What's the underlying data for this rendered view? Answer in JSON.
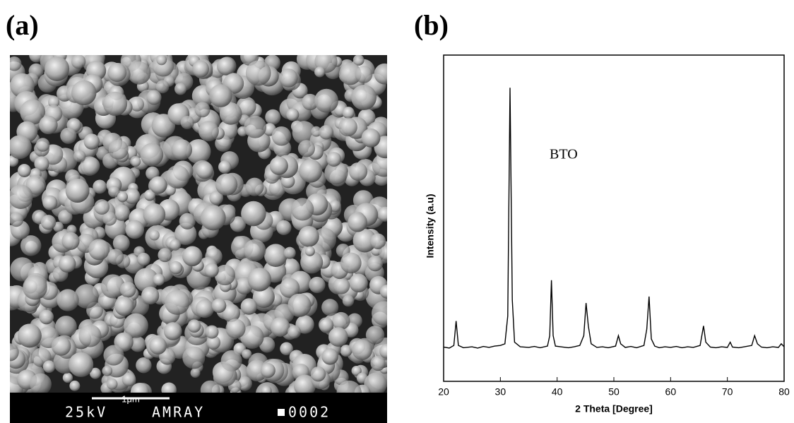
{
  "panel_a": {
    "label": "(a)",
    "scale_bar": "1μm",
    "voltage": "25kV",
    "instrument": "AMRAY",
    "frame": "0002"
  },
  "chart_data": {
    "type": "line",
    "label": "(b)",
    "x_label": "2 Theta [Degree]",
    "y_label": "Intensity  (a.u)",
    "annotation": "BTO",
    "color": "#000000",
    "x": [
      20,
      21,
      21.8,
      22.2,
      22.6,
      23.5,
      25,
      26,
      27,
      28,
      29,
      30,
      30.8,
      31.3,
      31.7,
      32.1,
      32.5,
      33.5,
      35,
      36,
      37,
      38.3,
      38.7,
      39,
      39.3,
      39.7,
      41,
      42,
      43,
      44,
      44.7,
      45.1,
      45.5,
      46,
      47,
      48,
      49,
      50.3,
      50.8,
      51.2,
      52,
      53,
      54,
      55.3,
      55.8,
      56.2,
      56.6,
      57.2,
      58,
      59,
      60,
      61,
      62,
      63,
      64,
      65.2,
      65.8,
      66.2,
      67,
      68,
      69,
      70,
      70.5,
      70.9,
      72,
      73,
      74.3,
      74.8,
      75.3,
      76,
      77,
      78,
      79,
      79.5,
      80
    ],
    "values": [
      10.5,
      10.2,
      11,
      18.5,
      11,
      10.3,
      10.6,
      10.2,
      10.7,
      10.4,
      10.8,
      11,
      11.5,
      20,
      90,
      25,
      12,
      10.6,
      10.4,
      10.7,
      10.3,
      10.8,
      14,
      31,
      14,
      10.8,
      10.5,
      10.3,
      10.6,
      11,
      14,
      24,
      17,
      11.5,
      10.4,
      10.6,
      10.3,
      10.8,
      14,
      11.5,
      10.4,
      10.7,
      10.3,
      11,
      16,
      26,
      13,
      10.8,
      10.3,
      10.6,
      10.4,
      10.7,
      10.3,
      10.6,
      10.4,
      11,
      17,
      12,
      10.5,
      10.3,
      10.6,
      10.4,
      12,
      10.5,
      10.3,
      10.6,
      11,
      14,
      11.5,
      10.5,
      10.3,
      10.6,
      10.4,
      11.5,
      10.6
    ],
    "xlim": [
      20,
      80
    ],
    "xticks": [
      20,
      30,
      40,
      50,
      60,
      70,
      80
    ],
    "ylim": [
      0,
      100
    ]
  }
}
